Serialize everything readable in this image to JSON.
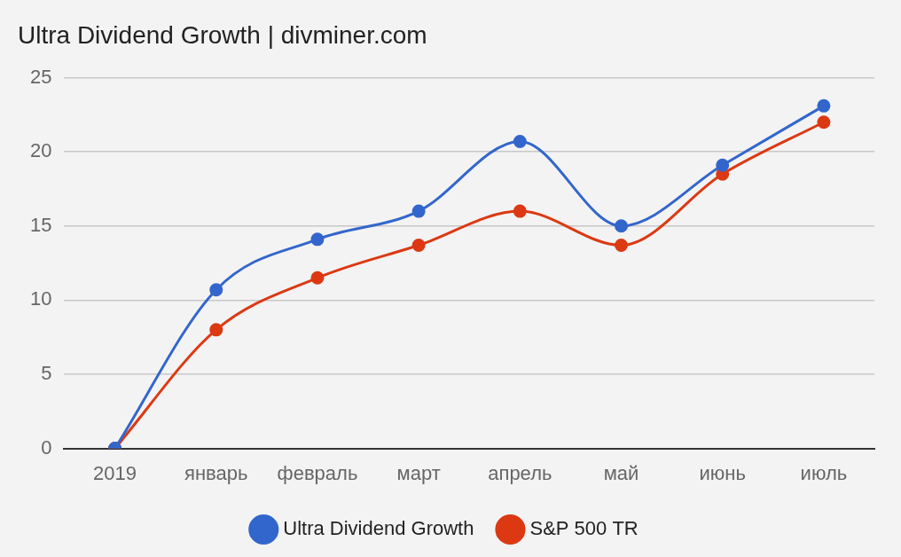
{
  "chart_data": {
    "type": "line",
    "title": "Ultra Dividend Growth | divminer.com",
    "categories": [
      "2019",
      "январь",
      "февраль",
      "март",
      "апрель",
      "май",
      "июнь",
      "июль"
    ],
    "series": [
      {
        "name": "Ultra Dividend Growth",
        "color": "#3366cc",
        "marker": "circle",
        "values": [
          0,
          10.7,
          14.1,
          16.0,
          20.7,
          15.0,
          19.1,
          23.1
        ]
      },
      {
        "name": "S&P 500 TR",
        "color": "#dc3912",
        "marker": "circle",
        "values": [
          0,
          8.0,
          11.5,
          13.7,
          16.0,
          13.7,
          18.5,
          22.0
        ]
      }
    ],
    "ylim": [
      0,
      25
    ],
    "yticks": [
      0,
      5,
      10,
      15,
      20,
      25
    ],
    "grid": true,
    "legend": "bottom"
  }
}
